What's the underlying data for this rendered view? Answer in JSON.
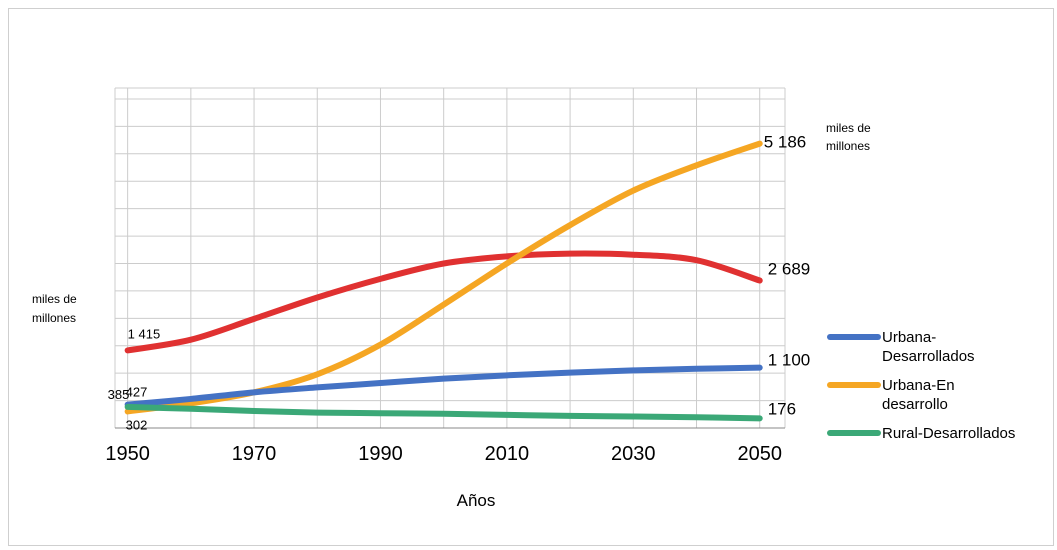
{
  "chart_data": {
    "type": "line",
    "xlabel": "Años",
    "ylabel_left": [
      "miles de",
      "millones"
    ],
    "ylabel_right": [
      "miles de",
      "millones"
    ],
    "xlim": [
      1948,
      2054
    ],
    "ylim": [
      0,
      6200
    ],
    "x_ticks": [
      "1950",
      "1970",
      "1990",
      "2010",
      "2030",
      "2050"
    ],
    "grid": true,
    "legend_position": "right",
    "series": [
      {
        "name": "Urbana-Desarrollados",
        "legend_lines": [
          "Urbana-",
          "Desarrollados"
        ],
        "color": "#4472C4",
        "x": [
          1950,
          1960,
          1970,
          1980,
          1990,
          2000,
          2010,
          2020,
          2030,
          2040,
          2050
        ],
        "y": [
          427,
          530,
          650,
          740,
          820,
          900,
          960,
          1010,
          1050,
          1080,
          1100
        ],
        "labels": [
          {
            "x": 1950,
            "text": "427"
          },
          {
            "x": 2050,
            "text": "1 100"
          }
        ]
      },
      {
        "name": "Urbana-En desarrollo",
        "legend_lines": [
          "Urbana-En",
          "desarrollo"
        ],
        "color": "#F5A623",
        "x": [
          1950,
          1960,
          1970,
          1980,
          1990,
          2000,
          2010,
          2020,
          2030,
          2040,
          2050
        ],
        "y": [
          302,
          450,
          650,
          980,
          1520,
          2250,
          3000,
          3700,
          4330,
          4790,
          5186
        ],
        "labels": [
          {
            "x": 1950,
            "text": "302"
          },
          {
            "x": 2050,
            "text": "5 186"
          }
        ]
      },
      {
        "name": "Rural-Desarrollados",
        "legend_lines": [
          "Rural-Desarrollados"
        ],
        "color": "#3BA877",
        "x": [
          1950,
          1960,
          1970,
          1980,
          1990,
          2000,
          2010,
          2020,
          2030,
          2040,
          2050
        ],
        "y": [
          385,
          350,
          310,
          280,
          270,
          260,
          240,
          220,
          210,
          195,
          176
        ],
        "labels": [
          {
            "x": 1950,
            "text": "385"
          },
          {
            "x": 2050,
            "text": "176"
          }
        ]
      },
      {
        "name": "",
        "legend_lines": [],
        "color": "#E03131",
        "x": [
          1950,
          1960,
          1970,
          1980,
          1990,
          2000,
          2010,
          2020,
          2030,
          2040,
          2050
        ],
        "y": [
          1415,
          1610,
          1990,
          2380,
          2720,
          3000,
          3130,
          3180,
          3160,
          3060,
          2689
        ],
        "labels": [
          {
            "x": 1950,
            "text": "1 415"
          },
          {
            "x": 2050,
            "text": "2 689"
          }
        ]
      }
    ]
  }
}
